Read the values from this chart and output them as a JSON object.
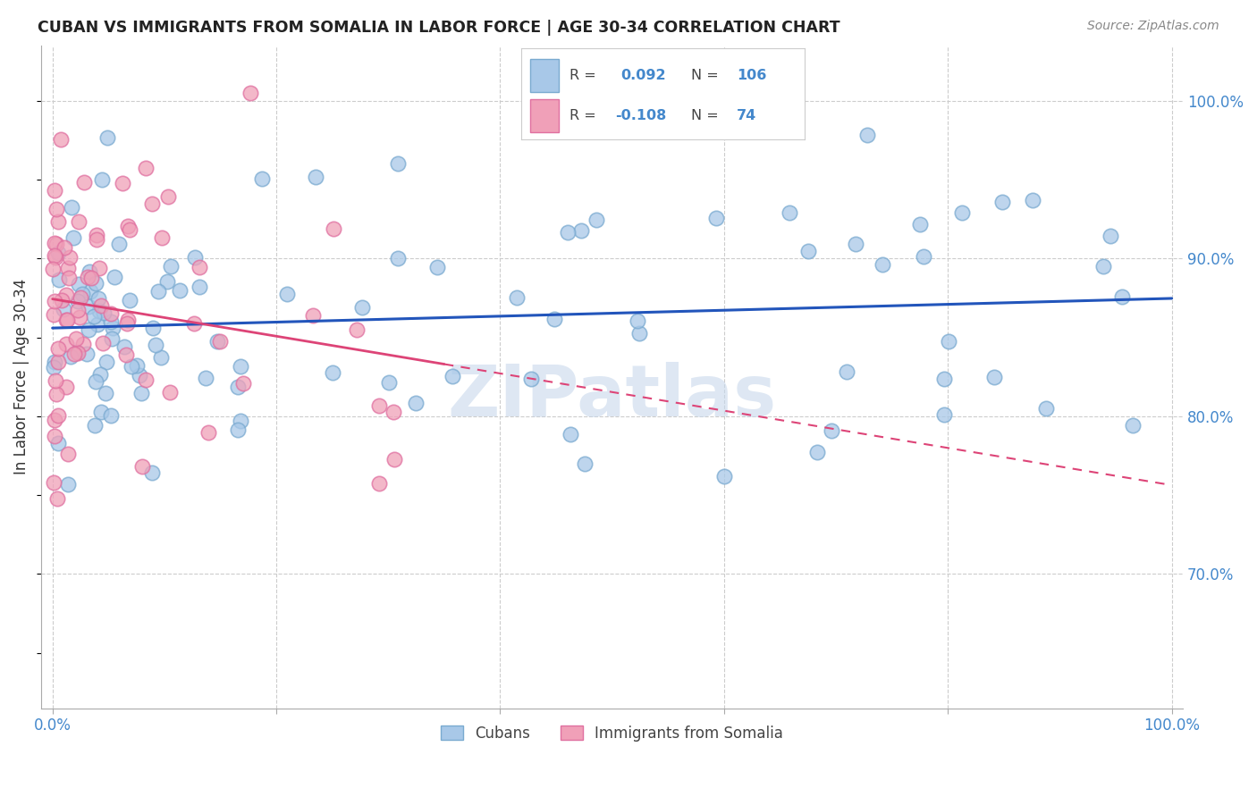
{
  "title": "CUBAN VS IMMIGRANTS FROM SOMALIA IN LABOR FORCE | AGE 30-34 CORRELATION CHART",
  "source": "Source: ZipAtlas.com",
  "ylabel": "In Labor Force | Age 30-34",
  "xlim": [
    -0.01,
    1.01
  ],
  "ylim": [
    0.615,
    1.035
  ],
  "x_ticks": [
    0.0,
    0.2,
    0.4,
    0.6,
    0.8,
    1.0
  ],
  "x_tick_labels": [
    "0.0%",
    "",
    "",
    "",
    "",
    "100.0%"
  ],
  "y_ticks_right": [
    0.7,
    0.8,
    0.9,
    1.0
  ],
  "y_tick_labels_right": [
    "70.0%",
    "80.0%",
    "90.0%",
    "100.0%"
  ],
  "blue_color": "#a8c8e8",
  "pink_color": "#f0a0b8",
  "blue_edge_color": "#7aaad0",
  "pink_edge_color": "#e070a0",
  "blue_line_color": "#2255bb",
  "pink_line_color": "#dd4477",
  "axis_color": "#4488cc",
  "grid_color": "#cccccc",
  "watermark": "ZIPatlas",
  "watermark_color": "#c8d8ec",
  "background": "#ffffff",
  "title_color": "#222222",
  "source_color": "#888888"
}
